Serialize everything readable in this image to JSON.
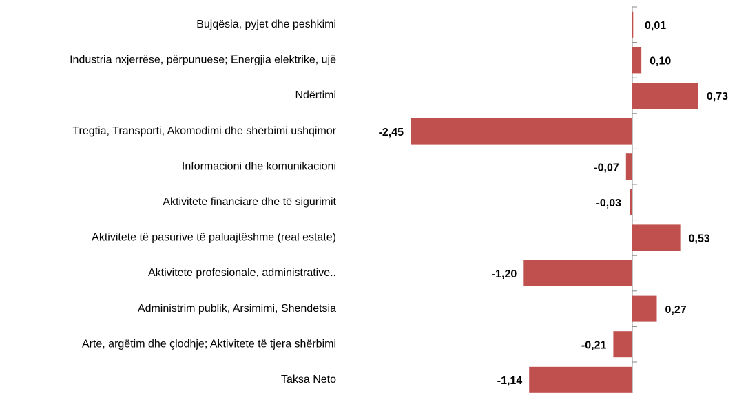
{
  "chart_data": {
    "type": "bar",
    "orientation": "horizontal",
    "categories": [
      "Bujqësia, pyjet dhe peshkimi",
      "Industria nxjerrëse, përpunuese; Energjia elektrike, ujë",
      "Ndërtimi",
      "Tregtia, Transporti, Akomodimi dhe shërbimi ushqimor",
      "Informacioni dhe komunikacioni",
      "Aktivitete financiare dhe të sigurimit",
      "Aktivitete të pasurive të paluajtëshme (real estate)",
      "Aktivitete profesionale, administrative..",
      "Administrim publik, Arsimimi, Shendetsia",
      "Arte, argëtim dhe çlodhje; Aktivitete të tjera shërbimi",
      "Taksa Neto"
    ],
    "values": [
      0.01,
      0.1,
      0.73,
      -2.45,
      -0.07,
      -0.03,
      0.53,
      -1.2,
      0.27,
      -0.21,
      -1.14
    ],
    "value_labels": [
      "0,01",
      "0,10",
      "0,73",
      "-2,45",
      "-0,07",
      "-0,03",
      "0,53",
      "-1,20",
      "0,27",
      "-0,21",
      "-1,14"
    ],
    "color": "#c0504d"
  }
}
